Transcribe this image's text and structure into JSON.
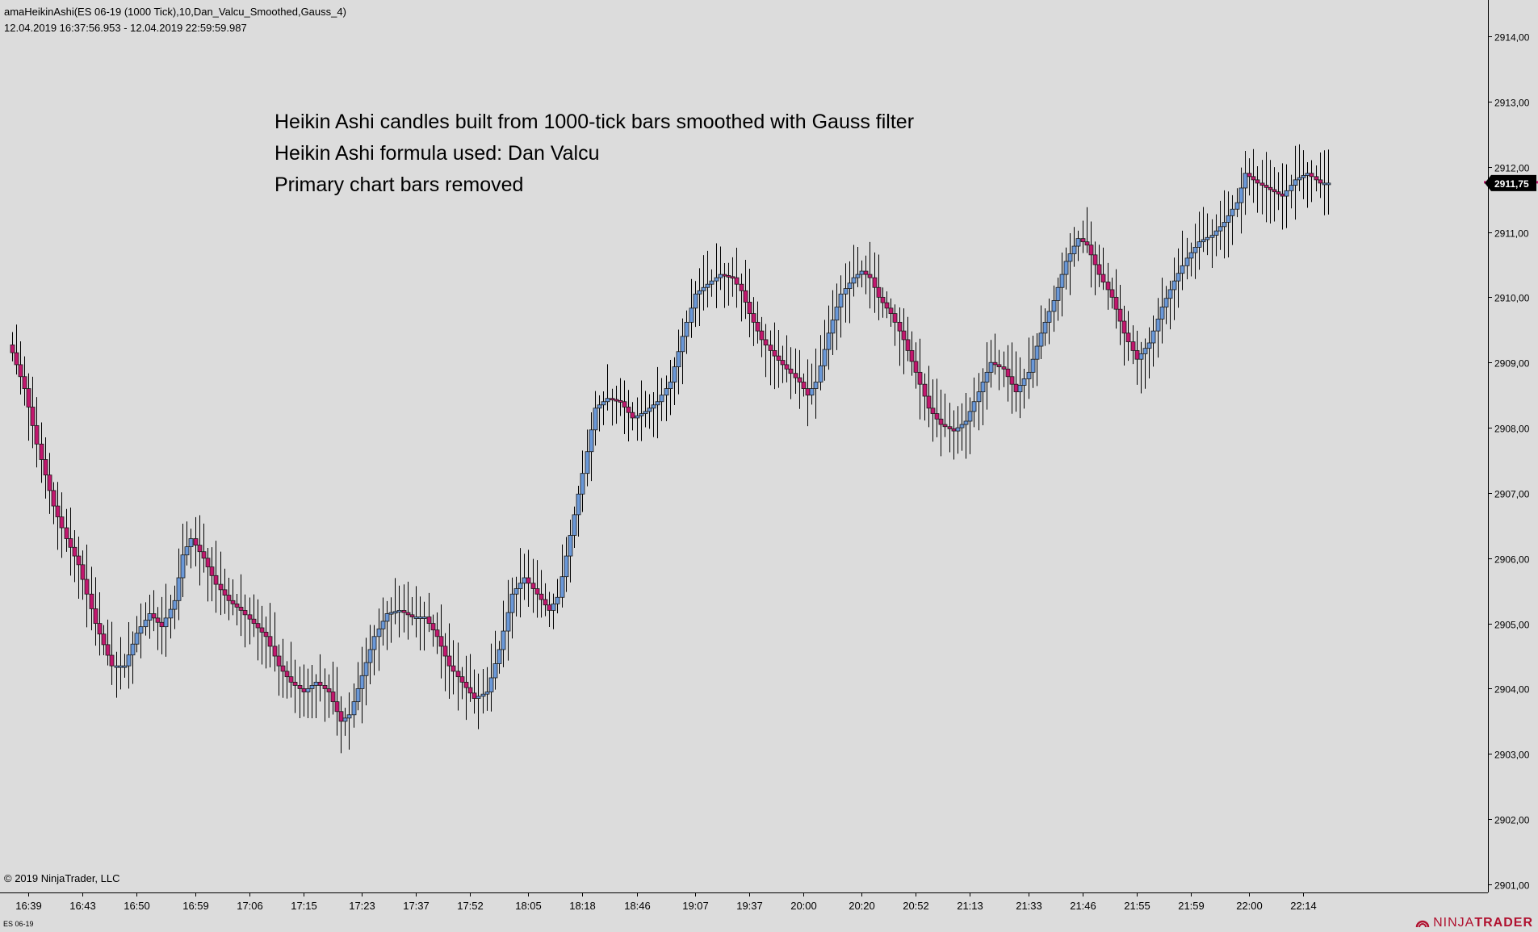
{
  "header": {
    "title": "amaHeikinAshi(ES 06-19 (1000 Tick),10,Dan_Valcu_Smoothed,Gauss_4)",
    "date_range": "12.04.2019 16:37:56.953 - 12.04.2019 22:59:59.987"
  },
  "annotations": [
    "Heikin Ashi candles built from 1000-tick bars smoothed with Gauss filter",
    "Heikin Ashi formula used: Dan Valcu",
    "Primary chart bars removed"
  ],
  "footer": {
    "copyright": "© 2019 NinjaTrader, LLC",
    "instrument": "ES 06-19",
    "logo_prefix": "NINJA",
    "logo_suffix": "TRADER"
  },
  "colors": {
    "background": "#dcdcdc",
    "bull": "#6a98d8",
    "bear": "#c2176e",
    "wick": "#000000",
    "price_marker": "#c2176e",
    "logo": "#b0112f"
  },
  "chart_data": {
    "type": "candlestick",
    "ylim": [
      2901,
      2914
    ],
    "y_ticks": [
      "2914,00",
      "2913,00",
      "2912,00",
      "2911,00",
      "2910,00",
      "2909,00",
      "2908,00",
      "2907,00",
      "2906,00",
      "2905,00",
      "2904,00",
      "2903,00",
      "2902,00",
      "2901,00"
    ],
    "x_ticks": [
      "16:39",
      "16:43",
      "16:50",
      "16:59",
      "17:06",
      "17:15",
      "17:23",
      "17:37",
      "17:52",
      "18:05",
      "18:18",
      "18:46",
      "19:07",
      "19:37",
      "20:00",
      "20:20",
      "20:52",
      "21:13",
      "21:33",
      "21:46",
      "21:55",
      "21:59",
      "22:00",
      "22:14"
    ],
    "x_tick_bar_index": [
      4,
      17,
      30,
      44,
      57,
      70,
      84,
      97,
      110,
      124,
      137,
      150,
      164,
      177,
      190,
      204,
      217,
      230,
      244,
      257,
      270,
      283,
      297,
      310
    ],
    "last_price": 2911.75,
    "last_price_label": "2911,75",
    "smoothed_close_path": [
      [
        0,
        2909.15
      ],
      [
        3,
        2908.6
      ],
      [
        6,
        2907.75
      ],
      [
        10,
        2906.8
      ],
      [
        13,
        2906.3
      ],
      [
        16,
        2905.9
      ],
      [
        20,
        2905.0
      ],
      [
        24,
        2904.35
      ],
      [
        27,
        2904.35
      ],
      [
        30,
        2904.85
      ],
      [
        33,
        2905.15
      ],
      [
        36,
        2904.95
      ],
      [
        39,
        2905.35
      ],
      [
        41,
        2906.05
      ],
      [
        43,
        2906.3
      ],
      [
        46,
        2906.0
      ],
      [
        49,
        2905.6
      ],
      [
        52,
        2905.35
      ],
      [
        55,
        2905.2
      ],
      [
        58,
        2905.0
      ],
      [
        61,
        2904.8
      ],
      [
        64,
        2904.35
      ],
      [
        67,
        2904.1
      ],
      [
        70,
        2903.95
      ],
      [
        73,
        2904.1
      ],
      [
        76,
        2903.95
      ],
      [
        79,
        2903.5
      ],
      [
        81,
        2903.6
      ],
      [
        84,
        2904.2
      ],
      [
        87,
        2904.8
      ],
      [
        90,
        2905.15
      ],
      [
        93,
        2905.2
      ],
      [
        96,
        2905.1
      ],
      [
        99,
        2905.1
      ],
      [
        102,
        2904.8
      ],
      [
        105,
        2904.35
      ],
      [
        108,
        2904.1
      ],
      [
        111,
        2903.85
      ],
      [
        114,
        2903.95
      ],
      [
        117,
        2904.6
      ],
      [
        120,
        2905.45
      ],
      [
        123,
        2905.7
      ],
      [
        126,
        2905.45
      ],
      [
        129,
        2905.2
      ],
      [
        131,
        2905.4
      ],
      [
        134,
        2906.35
      ],
      [
        137,
        2907.3
      ],
      [
        140,
        2908.3
      ],
      [
        143,
        2908.45
      ],
      [
        146,
        2908.4
      ],
      [
        149,
        2908.15
      ],
      [
        152,
        2908.25
      ],
      [
        155,
        2908.4
      ],
      [
        158,
        2908.7
      ],
      [
        161,
        2909.4
      ],
      [
        164,
        2910.05
      ],
      [
        167,
        2910.2
      ],
      [
        170,
        2910.35
      ],
      [
        173,
        2910.3
      ],
      [
        175,
        2910.1
      ],
      [
        177,
        2909.75
      ],
      [
        180,
        2909.35
      ],
      [
        183,
        2909.1
      ],
      [
        186,
        2908.9
      ],
      [
        189,
        2908.7
      ],
      [
        191,
        2908.5
      ],
      [
        193,
        2908.7
      ],
      [
        196,
        2909.45
      ],
      [
        199,
        2910.05
      ],
      [
        202,
        2910.3
      ],
      [
        204,
        2910.4
      ],
      [
        206,
        2910.3
      ],
      [
        208,
        2910.0
      ],
      [
        211,
        2909.75
      ],
      [
        214,
        2909.35
      ],
      [
        217,
        2908.85
      ],
      [
        220,
        2908.3
      ],
      [
        223,
        2908.05
      ],
      [
        226,
        2907.95
      ],
      [
        229,
        2908.1
      ],
      [
        232,
        2908.55
      ],
      [
        235,
        2909.0
      ],
      [
        238,
        2908.9
      ],
      [
        241,
        2908.55
      ],
      [
        244,
        2908.85
      ],
      [
        247,
        2909.45
      ],
      [
        250,
        2909.95
      ],
      [
        253,
        2910.55
      ],
      [
        256,
        2910.9
      ],
      [
        258,
        2910.8
      ],
      [
        261,
        2910.35
      ],
      [
        264,
        2910.0
      ],
      [
        267,
        2909.45
      ],
      [
        270,
        2909.05
      ],
      [
        273,
        2909.3
      ],
      [
        276,
        2909.85
      ],
      [
        279,
        2910.25
      ],
      [
        282,
        2910.6
      ],
      [
        285,
        2910.85
      ],
      [
        288,
        2910.95
      ],
      [
        291,
        2911.15
      ],
      [
        294,
        2911.45
      ],
      [
        296,
        2911.9
      ],
      [
        299,
        2911.75
      ],
      [
        302,
        2911.65
      ],
      [
        305,
        2911.55
      ],
      [
        308,
        2911.8
      ],
      [
        311,
        2911.9
      ],
      [
        314,
        2911.75
      ],
      [
        316,
        2911.75
      ]
    ]
  }
}
